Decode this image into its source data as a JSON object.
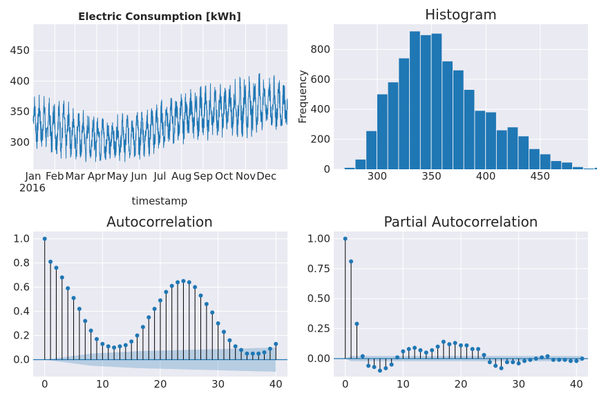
{
  "chart_data": [
    {
      "type": "line",
      "title": "Electric Consumption [kWh]",
      "xlabel": "timestamp",
      "ylabel": "",
      "x_ticks": [
        "Jan",
        "Feb",
        "Mar",
        "Apr",
        "May",
        "Jun",
        "Jul",
        "Aug",
        "Sep",
        "Oct",
        "Nov",
        "Dec"
      ],
      "x_year_label": "2016",
      "y_ticks": [
        300,
        350,
        400,
        450
      ],
      "ylim": [
        256,
        493
      ],
      "grid": true,
      "color": "#1f77b4",
      "series": [
        {
          "x": [
            "2016-01-01",
            "2016-01-15",
            "2016-02-01",
            "2016-02-15",
            "2016-03-01",
            "2016-03-15",
            "2016-04-01",
            "2016-04-15",
            "2016-05-01",
            "2016-05-15",
            "2016-06-01",
            "2016-06-15",
            "2016-07-01",
            "2016-07-15",
            "2016-08-01",
            "2016-08-15",
            "2016-09-01",
            "2016-09-15",
            "2016-10-01",
            "2016-10-15",
            "2016-11-01",
            "2016-11-15",
            "2016-12-01",
            "2016-12-15",
            "2016-12-31"
          ],
          "baseline": [
            335,
            330,
            325,
            320,
            315,
            308,
            310,
            305,
            306,
            310,
            312,
            318,
            325,
            335,
            340,
            345,
            348,
            350,
            352,
            355,
            358,
            362,
            365,
            362,
            358
          ],
          "amplitude": [
            45,
            48,
            50,
            50,
            47,
            45,
            45,
            42,
            40,
            42,
            44,
            44,
            45,
            45,
            45,
            46,
            48,
            48,
            48,
            50,
            55,
            55,
            50,
            48,
            45
          ]
        }
      ]
    },
    {
      "type": "bar",
      "title": "Histogram",
      "xlabel": "",
      "ylabel": "Frequency",
      "x_ticks": [
        300,
        350,
        400,
        450
      ],
      "y_ticks": [
        0,
        200,
        400,
        600,
        800
      ],
      "xlim": [
        260,
        494
      ],
      "ylim": [
        0,
        968
      ],
      "grid": true,
      "color": "#1f77b4",
      "bin_start": 270,
      "bin_width": 10,
      "values": [
        10,
        65,
        255,
        500,
        580,
        740,
        920,
        895,
        905,
        720,
        660,
        530,
        390,
        380,
        260,
        280,
        220,
        135,
        100,
        55,
        45,
        15,
        5,
        10,
        5
      ]
    },
    {
      "type": "scatter",
      "subtype": "stem",
      "title": "Autocorrelation",
      "xlabel": "",
      "ylabel": "",
      "x_ticks": [
        0,
        10,
        20,
        30,
        40
      ],
      "y_ticks": [
        0.0,
        0.2,
        0.4,
        0.6,
        0.8,
        1.0
      ],
      "xlim": [
        -2,
        42
      ],
      "ylim": [
        -0.14,
        1.06
      ],
      "grid": true,
      "color": "#1f77b4",
      "confidence_band": [
        0.0,
        0.05,
        0.07,
        0.08,
        0.09,
        0.1
      ],
      "values": [
        1.0,
        0.81,
        0.76,
        0.68,
        0.59,
        0.51,
        0.42,
        0.32,
        0.24,
        0.17,
        0.13,
        0.11,
        0.1,
        0.11,
        0.12,
        0.15,
        0.2,
        0.27,
        0.35,
        0.42,
        0.49,
        0.56,
        0.61,
        0.64,
        0.65,
        0.64,
        0.6,
        0.53,
        0.46,
        0.39,
        0.3,
        0.23,
        0.16,
        0.11,
        0.08,
        0.05,
        0.05,
        0.05,
        0.06,
        0.09,
        0.13
      ]
    },
    {
      "type": "scatter",
      "subtype": "stem",
      "title": "Partial Autocorrelation",
      "xlabel": "",
      "ylabel": "",
      "x_ticks": [
        0,
        10,
        20,
        30,
        40
      ],
      "y_ticks": [
        0.0,
        0.25,
        0.5,
        0.75,
        1.0
      ],
      "xlim": [
        -2,
        42
      ],
      "ylim": [
        -0.15,
        1.06
      ],
      "grid": true,
      "color": "#1f77b4",
      "confidence_band": 0.022,
      "values": [
        1.0,
        0.81,
        0.29,
        0.02,
        -0.06,
        -0.07,
        -0.1,
        -0.08,
        -0.05,
        0.01,
        0.06,
        0.08,
        0.09,
        0.07,
        0.05,
        0.07,
        0.1,
        0.14,
        0.12,
        0.13,
        0.11,
        0.11,
        0.08,
        0.08,
        0.03,
        -0.03,
        -0.06,
        -0.08,
        -0.03,
        -0.03,
        -0.04,
        -0.02,
        -0.01,
        0.0,
        0.01,
        0.02,
        -0.01,
        -0.01,
        -0.01,
        -0.02,
        -0.02,
        0.0
      ]
    }
  ]
}
